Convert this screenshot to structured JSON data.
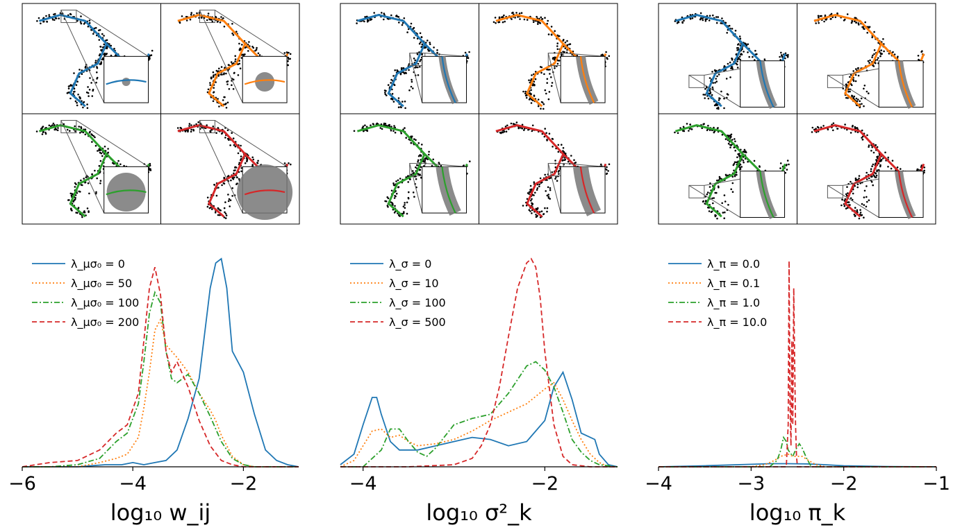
{
  "chart_data": [
    {
      "type": "line",
      "xlabel": "log₁₀ w_ij",
      "xlim": [
        -6,
        -1
      ],
      "xticks": [
        "−6",
        "−4",
        "−2"
      ],
      "legend_position": "top-left",
      "series": [
        {
          "name": "λ_μσ₀ = 0",
          "color": "#1f77b4",
          "dash": "solid",
          "x": [
            -6.0,
            -5.5,
            -5.0,
            -4.5,
            -4.2,
            -4.0,
            -3.8,
            -3.6,
            -3.4,
            -3.2,
            -3.0,
            -2.8,
            -2.6,
            -2.5,
            -2.4,
            -2.3,
            -2.2,
            -2.0,
            -1.8,
            -1.6,
            -1.4,
            -1.2,
            -1.0
          ],
          "y": [
            0.0,
            0.0,
            0.0,
            0.01,
            0.01,
            0.02,
            0.01,
            0.02,
            0.03,
            0.08,
            0.23,
            0.42,
            0.85,
            0.97,
            0.99,
            0.85,
            0.55,
            0.45,
            0.25,
            0.08,
            0.03,
            0.01,
            0.0
          ]
        },
        {
          "name": "λ_μσ₀ = 50",
          "color": "#ff7f0e",
          "dash": "dotted",
          "x": [
            -6.0,
            -5.5,
            -5.0,
            -4.6,
            -4.3,
            -4.1,
            -3.9,
            -3.8,
            -3.7,
            -3.6,
            -3.5,
            -3.4,
            -3.2,
            -3.0,
            -2.8,
            -2.6,
            -2.5,
            -2.4,
            -2.2,
            -2.0,
            -1.8,
            -1.5,
            -1.0
          ],
          "y": [
            0.0,
            0.0,
            0.0,
            0.02,
            0.04,
            0.06,
            0.14,
            0.28,
            0.45,
            0.65,
            0.7,
            0.58,
            0.52,
            0.45,
            0.35,
            0.27,
            0.22,
            0.15,
            0.05,
            0.01,
            0.0,
            0.0,
            0.0
          ]
        },
        {
          "name": "λ_μσ₀ = 100",
          "color": "#2ca02c",
          "dash": "dashdot",
          "x": [
            -6.0,
            -5.5,
            -5.0,
            -4.6,
            -4.3,
            -4.1,
            -3.9,
            -3.8,
            -3.7,
            -3.6,
            -3.5,
            -3.4,
            -3.3,
            -3.2,
            -3.0,
            -2.8,
            -2.6,
            -2.4,
            -2.2,
            -2.0,
            -1.8,
            -1.5,
            -1.0
          ],
          "y": [
            0.0,
            0.0,
            0.01,
            0.04,
            0.12,
            0.16,
            0.3,
            0.5,
            0.73,
            0.83,
            0.78,
            0.55,
            0.42,
            0.4,
            0.44,
            0.35,
            0.24,
            0.12,
            0.04,
            0.01,
            0.0,
            0.0,
            0.0
          ]
        },
        {
          "name": "λ_μσ₀ = 200",
          "color": "#d62728",
          "dash": "dashed",
          "x": [
            -6.0,
            -5.5,
            -5.0,
            -4.6,
            -4.3,
            -4.2,
            -4.1,
            -3.9,
            -3.8,
            -3.7,
            -3.6,
            -3.5,
            -3.4,
            -3.3,
            -3.2,
            -3.0,
            -2.8,
            -2.6,
            -2.4,
            -2.2,
            -2.0,
            -1.5,
            -1.0
          ],
          "y": [
            0.0,
            0.02,
            0.03,
            0.08,
            0.16,
            0.18,
            0.2,
            0.35,
            0.6,
            0.85,
            0.95,
            0.82,
            0.55,
            0.45,
            0.5,
            0.38,
            0.22,
            0.1,
            0.03,
            0.01,
            0.0,
            0.0,
            0.0
          ]
        }
      ]
    },
    {
      "type": "line",
      "xlabel": "log₁₀ σ²_k",
      "xlim": [
        -4.25,
        -1.2
      ],
      "xticks": [
        "−4",
        "−2"
      ],
      "legend_position": "top-left",
      "series": [
        {
          "name": "λ_σ = 0",
          "color": "#1f77b4",
          "dash": "solid",
          "x": [
            -4.25,
            -4.1,
            -4.0,
            -3.9,
            -3.85,
            -3.8,
            -3.7,
            -3.6,
            -3.4,
            -3.2,
            -3.0,
            -2.8,
            -2.6,
            -2.4,
            -2.2,
            -2.0,
            -1.9,
            -1.8,
            -1.7,
            -1.6,
            -1.5,
            -1.45,
            -1.4,
            -1.3,
            -1.2
          ],
          "y": [
            0.01,
            0.06,
            0.2,
            0.33,
            0.33,
            0.25,
            0.12,
            0.08,
            0.08,
            0.1,
            0.12,
            0.14,
            0.13,
            0.1,
            0.12,
            0.22,
            0.38,
            0.45,
            0.32,
            0.16,
            0.14,
            0.13,
            0.06,
            0.01,
            0.0
          ]
        },
        {
          "name": "λ_σ = 10",
          "color": "#ff7f0e",
          "dash": "dotted",
          "x": [
            -4.25,
            -4.1,
            -4.0,
            -3.9,
            -3.8,
            -3.7,
            -3.6,
            -3.5,
            -3.4,
            -3.2,
            -3.0,
            -2.8,
            -2.6,
            -2.4,
            -2.2,
            -2.0,
            -1.9,
            -1.8,
            -1.7,
            -1.6,
            -1.5,
            -1.4,
            -1.3,
            -1.2
          ],
          "y": [
            0.0,
            0.03,
            0.1,
            0.17,
            0.18,
            0.14,
            0.15,
            0.12,
            0.1,
            0.11,
            0.13,
            0.17,
            0.22,
            0.26,
            0.3,
            0.37,
            0.4,
            0.32,
            0.22,
            0.13,
            0.06,
            0.02,
            0.0,
            0.0
          ]
        },
        {
          "name": "λ_σ = 100",
          "color": "#2ca02c",
          "dash": "dashdot",
          "x": [
            -4.25,
            -4.0,
            -3.8,
            -3.7,
            -3.6,
            -3.5,
            -3.4,
            -3.3,
            -3.2,
            -3.0,
            -2.8,
            -2.6,
            -2.4,
            -2.2,
            -2.1,
            -2.0,
            -1.9,
            -1.8,
            -1.7,
            -1.6,
            -1.5,
            -1.4,
            -1.2
          ],
          "y": [
            0.0,
            0.0,
            0.08,
            0.18,
            0.18,
            0.12,
            0.07,
            0.05,
            0.09,
            0.2,
            0.23,
            0.25,
            0.35,
            0.48,
            0.5,
            0.46,
            0.38,
            0.26,
            0.13,
            0.07,
            0.03,
            0.01,
            0.0
          ]
        },
        {
          "name": "λ_σ = 500",
          "color": "#d62728",
          "dash": "dashed",
          "x": [
            -4.25,
            -3.5,
            -3.0,
            -2.8,
            -2.7,
            -2.6,
            -2.5,
            -2.4,
            -2.3,
            -2.2,
            -2.15,
            -2.1,
            -2.05,
            -2.0,
            -1.9,
            -1.8,
            -1.7,
            -1.5,
            -1.2
          ],
          "y": [
            0.0,
            0.0,
            0.01,
            0.04,
            0.1,
            0.2,
            0.38,
            0.62,
            0.85,
            0.97,
            0.99,
            0.95,
            0.8,
            0.55,
            0.2,
            0.05,
            0.01,
            0.0,
            0.0
          ]
        }
      ]
    },
    {
      "type": "line",
      "xlabel": "log₁₀ π_k",
      "xlim": [
        -4,
        -1
      ],
      "xticks": [
        "−4",
        "−3",
        "−2",
        "−1"
      ],
      "legend_position": "top-left",
      "series": [
        {
          "name": "λ_π = 0.0",
          "color": "#1f77b4",
          "dash": "solid",
          "x": [
            -4.0,
            -3.5,
            -3.0,
            -2.8,
            -2.6,
            -2.4,
            -2.2,
            -2.0,
            -1.5,
            -1.0
          ],
          "y": [
            0.0,
            0.005,
            0.012,
            0.015,
            0.015,
            0.014,
            0.01,
            0.005,
            0.001,
            0.0
          ]
        },
        {
          "name": "λ_π = 0.1",
          "color": "#ff7f0e",
          "dash": "dotted",
          "x": [
            -4.0,
            -3.0,
            -2.85,
            -2.75,
            -2.68,
            -2.6,
            -2.55,
            -2.5,
            -2.45,
            -2.38,
            -2.3,
            -2.2,
            -1.0
          ],
          "y": [
            0.0,
            0.0,
            0.01,
            0.03,
            0.05,
            0.06,
            0.05,
            0.05,
            0.05,
            0.03,
            0.01,
            0.0,
            0.0
          ]
        },
        {
          "name": "λ_π = 1.0",
          "color": "#2ca02c",
          "dash": "dashdot",
          "x": [
            -4.0,
            -2.8,
            -2.72,
            -2.68,
            -2.65,
            -2.62,
            -2.6,
            -2.55,
            -2.52,
            -2.48,
            -2.45,
            -2.4,
            -2.35,
            -1.0
          ],
          "y": [
            0.0,
            0.0,
            0.03,
            0.08,
            0.14,
            0.12,
            0.08,
            0.05,
            0.08,
            0.11,
            0.09,
            0.04,
            0.0,
            0.0
          ]
        },
        {
          "name": "λ_π = 10.0",
          "color": "#d62728",
          "dash": "dashed",
          "x": [
            -4.0,
            -2.62,
            -2.6,
            -2.59,
            -2.58,
            -2.57,
            -2.56,
            -2.55,
            -2.54,
            -2.53,
            -2.52,
            -2.51,
            -2.5,
            -1.0
          ],
          "y": [
            0.0,
            0.0,
            0.2,
            0.98,
            0.3,
            0.1,
            0.6,
            0.2,
            0.85,
            0.5,
            0.2,
            0.05,
            0.0,
            0.0
          ]
        }
      ]
    }
  ],
  "panel_grids": [
    {
      "colors": [
        "#1f77b4",
        "#ff7f0e",
        "#2ca02c",
        "#d62728"
      ],
      "inset_position": "upper",
      "blob_size": [
        "small",
        "medium",
        "large",
        "very-large"
      ]
    },
    {
      "colors": [
        "#1f77b4",
        "#ff7f0e",
        "#2ca02c",
        "#d62728"
      ],
      "inset_position": "middle",
      "band_width": [
        "narrow",
        "medium",
        "wide",
        "very-wide"
      ]
    },
    {
      "colors": [
        "#1f77b4",
        "#ff7f0e",
        "#2ca02c",
        "#d62728"
      ],
      "inset_position": "lower",
      "band_width": [
        "narrow",
        "narrow",
        "narrow",
        "narrow"
      ]
    }
  ]
}
